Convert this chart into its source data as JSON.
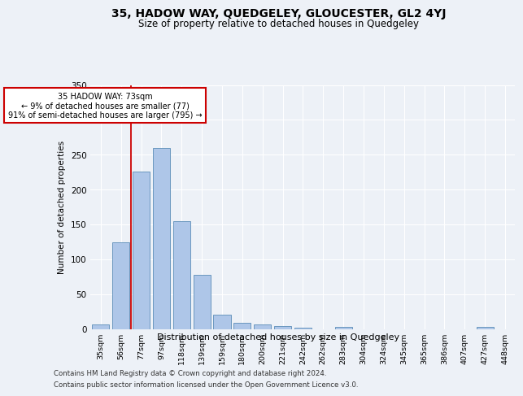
{
  "title": "35, HADOW WAY, QUEDGELEY, GLOUCESTER, GL2 4YJ",
  "subtitle": "Size of property relative to detached houses in Quedgeley",
  "xlabel": "Distribution of detached houses by size in Quedgeley",
  "ylabel": "Number of detached properties",
  "categories": [
    "35sqm",
    "56sqm",
    "77sqm",
    "97sqm",
    "118sqm",
    "139sqm",
    "159sqm",
    "180sqm",
    "200sqm",
    "221sqm",
    "242sqm",
    "262sqm",
    "283sqm",
    "304sqm",
    "324sqm",
    "345sqm",
    "365sqm",
    "386sqm",
    "407sqm",
    "427sqm",
    "448sqm"
  ],
  "values": [
    7,
    124,
    226,
    260,
    155,
    78,
    21,
    9,
    6,
    4,
    2,
    0,
    3,
    0,
    0,
    0,
    0,
    0,
    0,
    3,
    0
  ],
  "bar_color": "#aec6e8",
  "bar_edge_color": "#5b8db8",
  "red_line_color": "#cc0000",
  "annotation_title": "35 HADOW WAY: 73sqm",
  "annotation_line1": "← 9% of detached houses are smaller (77)",
  "annotation_line2": "91% of semi-detached houses are larger (795) →",
  "annotation_box_color": "#ffffff",
  "annotation_box_edge": "#cc0000",
  "ylim": [
    0,
    350
  ],
  "yticks": [
    0,
    50,
    100,
    150,
    200,
    250,
    300,
    350
  ],
  "footer1": "Contains HM Land Registry data © Crown copyright and database right 2024.",
  "footer2": "Contains public sector information licensed under the Open Government Licence v3.0.",
  "bg_color": "#edf1f7",
  "plot_bg_color": "#edf1f7"
}
